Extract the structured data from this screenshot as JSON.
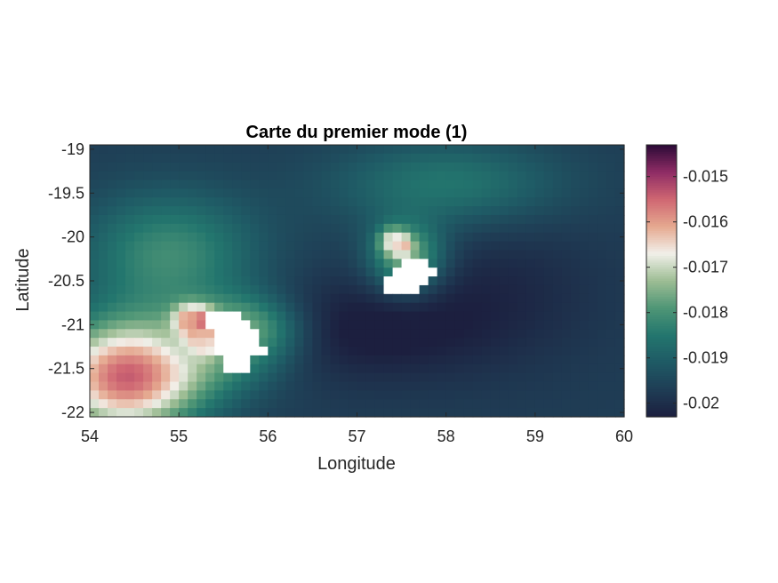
{
  "chart_data": {
    "type": "heatmap",
    "title": "Carte du premier mode (1)",
    "xlabel": "Longitude",
    "ylabel": "Latitude",
    "xlim": [
      54,
      60
    ],
    "ylim": [
      -22.05,
      -18.95
    ],
    "x_ticks": [
      54,
      55,
      56,
      57,
      58,
      59,
      60
    ],
    "x_tick_labels": [
      "54",
      "55",
      "56",
      "57",
      "58",
      "59",
      "60"
    ],
    "y_ticks": [
      -19,
      -19.5,
      -20,
      -20.5,
      -21,
      -21.5,
      -22
    ],
    "y_tick_labels": [
      "-19",
      "-19.5",
      "-20",
      "-20.5",
      "-21",
      "-21.5",
      "-22"
    ],
    "colorbar": {
      "range": [
        -0.0203,
        -0.0143
      ],
      "ticks": [
        -0.015,
        -0.016,
        -0.017,
        -0.018,
        -0.019,
        -0.02
      ],
      "tick_labels": [
        "-0.015",
        "-0.016",
        "-0.017",
        "-0.018",
        "-0.019",
        "-0.02"
      ],
      "colormap": [
        "#1c1f3f",
        "#1f3d55",
        "#1f5a65",
        "#23766e",
        "#4f9676",
        "#9dbd94",
        "#f2f0ea",
        "#e5a88f",
        "#cf6672",
        "#8e2c65",
        "#2a0a36"
      ]
    },
    "grid": false,
    "grid_resolution_deg": 0.1,
    "background_value": -0.0197,
    "masked_land_color": "#ffffff",
    "features": [
      {
        "lon": 54.4,
        "lat": -21.6,
        "value": 0.0042,
        "sx": 0.6,
        "sy": 0.45
      },
      {
        "lon": 54.9,
        "lat": -20.2,
        "value": 0.0016,
        "sx": 0.7,
        "sy": 0.5
      },
      {
        "lon": 58.0,
        "lat": -19.4,
        "value": 0.0012,
        "sx": 0.9,
        "sy": 0.35
      },
      {
        "lon": 55.5,
        "lat": -21.3,
        "value": 0.0012,
        "sx": 0.5,
        "sy": 0.35
      },
      {
        "lon": 57.1,
        "lat": -21.05,
        "value": -0.0007,
        "sx": 0.9,
        "sy": 0.4
      },
      {
        "lon": 58.6,
        "lat": -20.6,
        "value": -0.0004,
        "sx": 0.8,
        "sy": 0.6
      }
    ],
    "islands": [
      {
        "name": "",
        "lon_center": 55.6,
        "lat_center": -21.05,
        "radius_lon": 0.35,
        "radius_lat": 0.25,
        "halo_value": -0.0175,
        "halo_lon": 0.95,
        "halo_lat": 0.55,
        "hotspots": [
          {
            "lon": 55.25,
            "lat": -21.0,
            "value": -0.0145,
            "r": 0.12
          },
          {
            "lon": 55.1,
            "lat": -20.95,
            "value": -0.016,
            "r": 0.12
          },
          {
            "lon": 55.25,
            "lat": -21.15,
            "value": -0.0162,
            "r": 0.12
          },
          {
            "lon": 55.3,
            "lat": -21.25,
            "value": -0.0165,
            "r": 0.08
          }
        ],
        "mask_cells": [
          [
            55.3,
            -20.8
          ],
          [
            55.4,
            -20.8
          ],
          [
            55.5,
            -20.8
          ],
          [
            55.6,
            -20.8
          ],
          [
            55.3,
            -20.9
          ],
          [
            55.4,
            -20.9
          ],
          [
            55.5,
            -20.9
          ],
          [
            55.6,
            -20.9
          ],
          [
            55.7,
            -20.9
          ],
          [
            55.4,
            -21.0
          ],
          [
            55.5,
            -21.0
          ],
          [
            55.6,
            -21.0
          ],
          [
            55.7,
            -21.0
          ],
          [
            55.8,
            -21.0
          ],
          [
            55.4,
            -21.1
          ],
          [
            55.5,
            -21.1
          ],
          [
            55.6,
            -21.1
          ],
          [
            55.7,
            -21.1
          ],
          [
            55.8,
            -21.1
          ],
          [
            55.4,
            -21.2
          ],
          [
            55.5,
            -21.2
          ],
          [
            55.6,
            -21.2
          ],
          [
            55.7,
            -21.2
          ],
          [
            55.8,
            -21.2
          ],
          [
            55.9,
            -21.2
          ],
          [
            55.5,
            -21.3
          ],
          [
            55.6,
            -21.3
          ],
          [
            55.7,
            -21.3
          ],
          [
            55.8,
            -21.3
          ],
          [
            55.5,
            -21.4
          ],
          [
            55.6,
            -21.4
          ],
          [
            55.7,
            -21.4
          ]
        ]
      },
      {
        "name": "",
        "lon_center": 57.55,
        "lat_center": -20.2,
        "radius_lon": 0.25,
        "radius_lat": 0.35,
        "halo_value": -0.0176,
        "halo_lon": 0.6,
        "halo_lat": 0.6,
        "hotspots": [
          {
            "lon": 57.5,
            "lat": -20.1,
            "value": -0.0158,
            "r": 0.08
          },
          {
            "lon": 57.4,
            "lat": -20.05,
            "value": -0.0166,
            "r": 0.1
          }
        ],
        "mask_cells": [
          [
            57.5,
            -20.2
          ],
          [
            57.6,
            -20.2
          ],
          [
            57.7,
            -20.2
          ],
          [
            57.4,
            -20.3
          ],
          [
            57.5,
            -20.3
          ],
          [
            57.6,
            -20.3
          ],
          [
            57.7,
            -20.3
          ],
          [
            57.8,
            -20.3
          ],
          [
            57.3,
            -20.4
          ],
          [
            57.4,
            -20.4
          ],
          [
            57.5,
            -20.4
          ],
          [
            57.6,
            -20.4
          ],
          [
            57.7,
            -20.4
          ],
          [
            57.3,
            -20.5
          ],
          [
            57.4,
            -20.5
          ],
          [
            57.5,
            -20.5
          ],
          [
            57.6,
            -20.5
          ]
        ]
      }
    ]
  }
}
